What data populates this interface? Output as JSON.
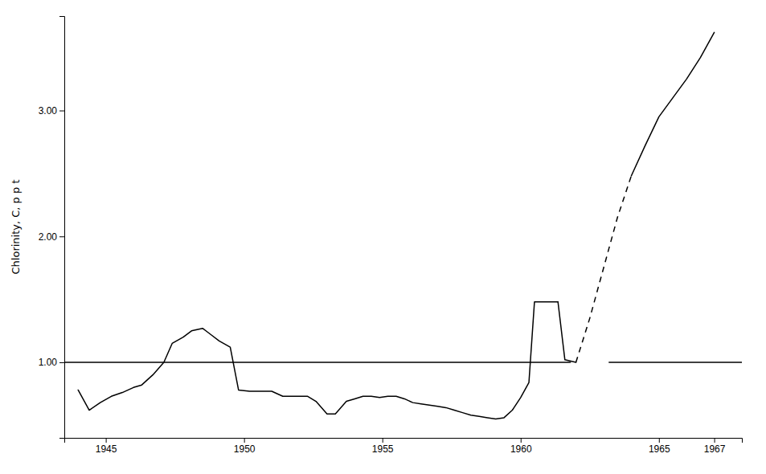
{
  "chart_data": {
    "type": "line",
    "ylabel": "Chlorinity, C, p p t",
    "xlim": [
      1943.5,
      1968
    ],
    "ylim": [
      0.4,
      3.75
    ],
    "xticks": [
      1945,
      1950,
      1955,
      1960,
      1965,
      1967
    ],
    "yticks": [
      {
        "value": 1.0,
        "label": "1.00"
      },
      {
        "value": 2.0,
        "label": "2.00"
      },
      {
        "value": 3.0,
        "label": "3.00"
      }
    ],
    "grid": false,
    "series": [
      {
        "color": "#000000",
        "line_style": "solid",
        "x": [
          1943.5,
          1961.8
        ],
        "values": [
          1.0,
          1.0
        ]
      },
      {
        "color": "#000000",
        "line_style": "solid",
        "x": [
          1963.2,
          1968.0
        ],
        "values": [
          1.0,
          1.0
        ]
      },
      {
        "color": "#000000",
        "line_style": "solid",
        "x": [
          1944.0,
          1944.4,
          1944.8,
          1945.2,
          1945.6,
          1946.0,
          1946.3,
          1946.7,
          1947.1,
          1947.4,
          1947.8,
          1948.1,
          1948.5,
          1948.8,
          1949.1,
          1949.5,
          1949.8,
          1950.2,
          1950.6,
          1951.0,
          1951.4,
          1951.7,
          1952.0,
          1952.3,
          1952.6,
          1953.0,
          1953.3,
          1953.7,
          1954.0,
          1954.3,
          1954.6,
          1954.9,
          1955.2,
          1955.5,
          1955.8,
          1956.1,
          1956.4,
          1956.7,
          1957.0,
          1957.3,
          1957.6,
          1957.9,
          1958.2,
          1958.5,
          1958.8,
          1959.1,
          1959.4,
          1959.7,
          1960.0,
          1960.3,
          1960.5,
          1960.65,
          1961.0,
          1961.35
        ],
        "values": [
          0.78,
          0.62,
          0.68,
          0.73,
          0.76,
          0.8,
          0.82,
          0.9,
          1.0,
          1.15,
          1.2,
          1.25,
          1.27,
          1.22,
          1.17,
          1.12,
          0.78,
          0.77,
          0.77,
          0.77,
          0.73,
          0.73,
          0.73,
          0.73,
          0.69,
          0.59,
          0.59,
          0.69,
          0.71,
          0.73,
          0.73,
          0.72,
          0.73,
          0.73,
          0.71,
          0.68,
          0.67,
          0.66,
          0.65,
          0.64,
          0.62,
          0.6,
          0.58,
          0.57,
          0.56,
          0.55,
          0.56,
          0.62,
          0.72,
          0.84,
          1.48,
          1.48,
          1.48,
          1.48
        ]
      },
      {
        "color": "#000000",
        "line_style": "solid",
        "x": [
          1961.35,
          1961.6,
          1962.0
        ],
        "values": [
          1.48,
          1.02,
          1.0
        ]
      },
      {
        "color": "#000000",
        "line_style": "dashed",
        "x": [
          1962.0,
          1962.5,
          1963.0,
          1963.5,
          1964.0
        ],
        "values": [
          1.0,
          1.35,
          1.75,
          2.15,
          2.48
        ]
      },
      {
        "color": "#000000",
        "line_style": "solid",
        "x": [
          1964.0,
          1964.5,
          1965.0,
          1965.5,
          1966.0,
          1966.5,
          1967.0
        ],
        "values": [
          2.48,
          2.72,
          2.95,
          3.1,
          3.25,
          3.42,
          3.62
        ]
      }
    ]
  }
}
